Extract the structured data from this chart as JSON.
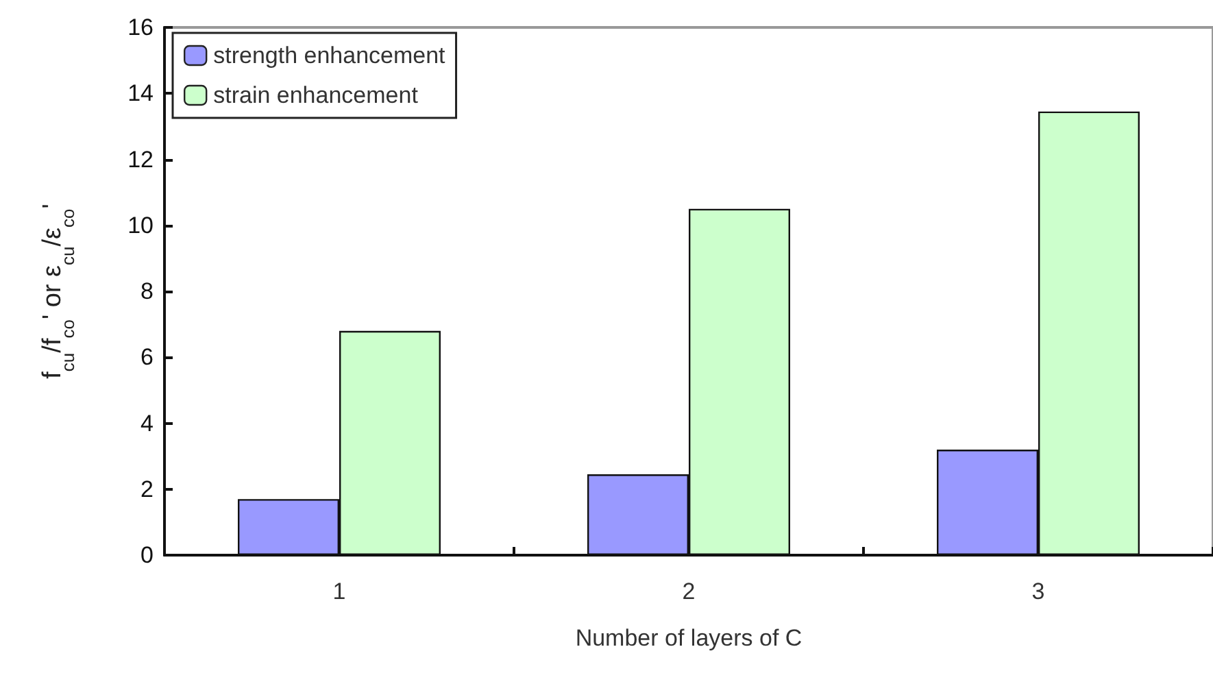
{
  "chart_data": {
    "type": "bar",
    "xlabel": "Number of layers of C",
    "ylabel": "f$_{cu}$/f$_{co}$' or ε$_{cu}$/ε$_{co}$'",
    "categories": [
      "1",
      "2",
      "3"
    ],
    "series": [
      {
        "name": "strength enhancement",
        "color": "#9999ff",
        "values": [
          1.7,
          2.45,
          3.2
        ]
      },
      {
        "name": "strain enhancement",
        "color": "#ccffcc",
        "values": [
          6.8,
          10.5,
          13.45
        ]
      }
    ],
    "ylim": [
      0,
      16
    ],
    "yticks": [
      0,
      2,
      4,
      6,
      8,
      10,
      12,
      14,
      16
    ],
    "grid": false,
    "legend": "top left"
  }
}
